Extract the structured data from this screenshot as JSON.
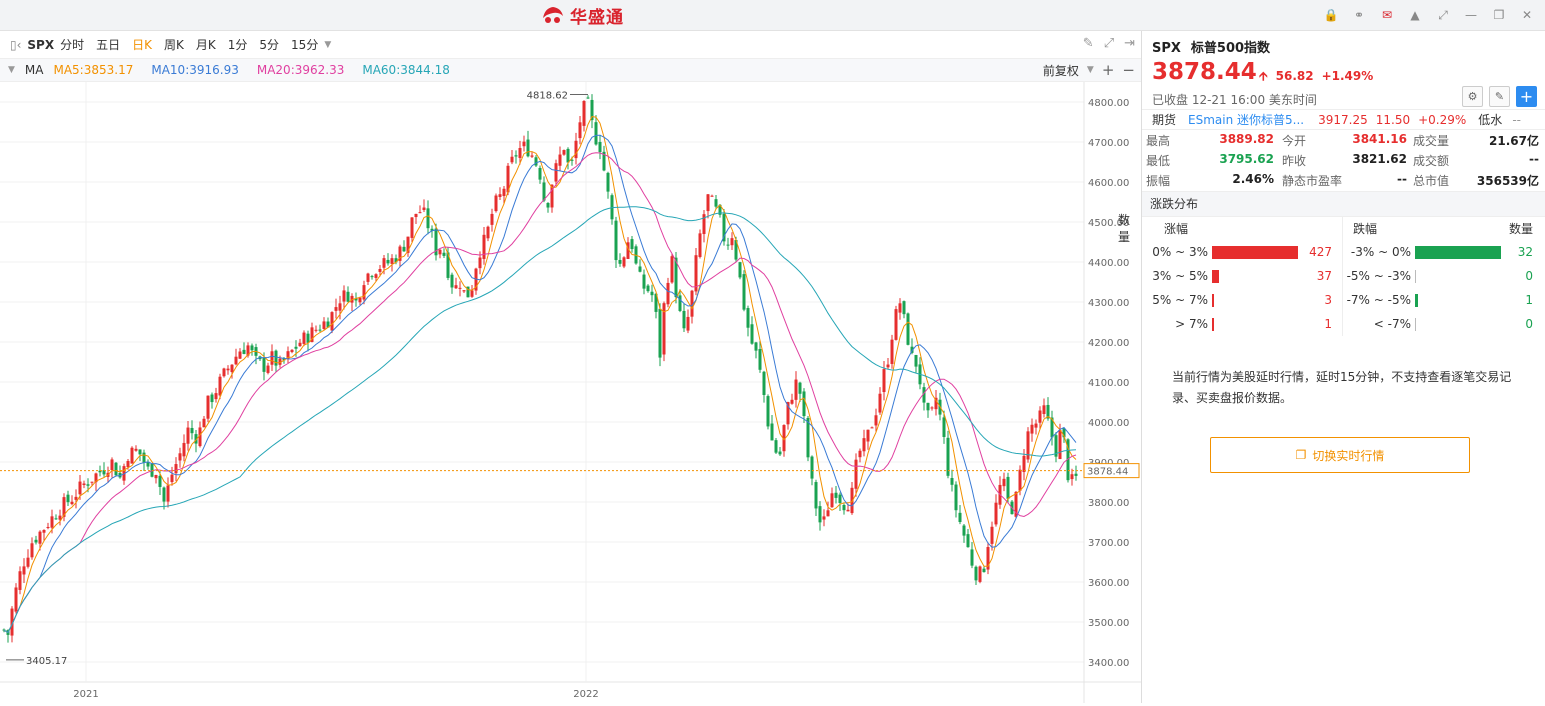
{
  "app": {
    "logo_text": "华盛通"
  },
  "toolbar": {
    "symbol": "SPX",
    "periods": [
      "分时",
      "五日",
      "日K",
      "周K",
      "月K",
      "1分",
      "5分",
      "15分"
    ],
    "active": "日K"
  },
  "ma_bar": {
    "label": "MA",
    "items": [
      {
        "text": "MA5:3853.17",
        "color": "#f29100"
      },
      {
        "text": "MA10:3916.93",
        "color": "#3a7bd5"
      },
      {
        "text": "MA20:3962.33",
        "color": "#e040a0"
      },
      {
        "text": "MA60:3844.18",
        "color": "#26a6b6"
      }
    ],
    "adjust_label": "前复权"
  },
  "chart_data": {
    "type": "line",
    "series_colors": {
      "up": "#e62e2e",
      "down": "#1aa251",
      "ma5": "#f29100",
      "ma10": "#3a7bd5",
      "ma20": "#e040a0",
      "ma60": "#26a6b6"
    },
    "y_ticks": [
      "4800.00",
      "4700.00",
      "4600.00",
      "4500.00",
      "4400.00",
      "4300.00",
      "4200.00",
      "4100.00",
      "4000.00",
      "3900.00",
      "3800.00",
      "3700.00",
      "3600.00",
      "3500.00",
      "3400.00"
    ],
    "ylim": [
      3350,
      4850
    ],
    "x_labels": [
      "2021",
      "2022"
    ],
    "max_label": "4818.62",
    "min_label": "3405.17",
    "last_price_label": "3878.44",
    "last_price": 3878.44,
    "path": [
      [
        0,
        3560
      ],
      [
        6,
        3440
      ],
      [
        14,
        3560
      ],
      [
        22,
        3640
      ],
      [
        32,
        3700
      ],
      [
        42,
        3730
      ],
      [
        52,
        3760
      ],
      [
        62,
        3790
      ],
      [
        72,
        3810
      ],
      [
        82,
        3840
      ],
      [
        92,
        3860
      ],
      [
        102,
        3880
      ],
      [
        112,
        3900
      ],
      [
        120,
        3860
      ],
      [
        128,
        3920
      ],
      [
        138,
        3930
      ],
      [
        148,
        3880
      ],
      [
        156,
        3880
      ],
      [
        164,
        3800
      ],
      [
        172,
        3870
      ],
      [
        180,
        3920
      ],
      [
        188,
        3980
      ],
      [
        198,
        3960
      ],
      [
        206,
        4040
      ],
      [
        214,
        4070
      ],
      [
        222,
        4110
      ],
      [
        232,
        4150
      ],
      [
        240,
        4180
      ],
      [
        248,
        4190
      ],
      [
        256,
        4150
      ],
      [
        264,
        4140
      ],
      [
        272,
        4160
      ],
      [
        280,
        4140
      ],
      [
        290,
        4170
      ],
      [
        300,
        4200
      ],
      [
        310,
        4220
      ],
      [
        320,
        4240
      ],
      [
        330,
        4260
      ],
      [
        340,
        4310
      ],
      [
        348,
        4320
      ],
      [
        356,
        4300
      ],
      [
        364,
        4360
      ],
      [
        372,
        4380
      ],
      [
        380,
        4390
      ],
      [
        390,
        4400
      ],
      [
        398,
        4420
      ],
      [
        406,
        4450
      ],
      [
        414,
        4520
      ],
      [
        422,
        4530
      ],
      [
        430,
        4480
      ],
      [
        436,
        4430
      ],
      [
        442,
        4440
      ],
      [
        448,
        4380
      ],
      [
        454,
        4330
      ],
      [
        460,
        4350
      ],
      [
        466,
        4310
      ],
      [
        472,
        4340
      ],
      [
        478,
        4420
      ],
      [
        486,
        4460
      ],
      [
        494,
        4540
      ],
      [
        502,
        4570
      ],
      [
        510,
        4640
      ],
      [
        518,
        4680
      ],
      [
        526,
        4690
      ],
      [
        534,
        4660
      ],
      [
        540,
        4620
      ],
      [
        546,
        4530
      ],
      [
        552,
        4600
      ],
      [
        558,
        4650
      ],
      [
        564,
        4690
      ],
      [
        570,
        4620
      ],
      [
        576,
        4700
      ],
      [
        582,
        4780
      ],
      [
        588,
        4790
      ],
      [
        594,
        4720
      ],
      [
        600,
        4690
      ],
      [
        606,
        4600
      ],
      [
        612,
        4500
      ],
      [
        618,
        4380
      ],
      [
        624,
        4420
      ],
      [
        630,
        4470
      ],
      [
        636,
        4390
      ],
      [
        642,
        4340
      ],
      [
        648,
        4330
      ],
      [
        654,
        4310
      ],
      [
        660,
        4170
      ],
      [
        666,
        4350
      ],
      [
        672,
        4400
      ],
      [
        678,
        4290
      ],
      [
        684,
        4220
      ],
      [
        690,
        4280
      ],
      [
        696,
        4400
      ],
      [
        702,
        4500
      ],
      [
        708,
        4560
      ],
      [
        714,
        4540
      ],
      [
        720,
        4500
      ],
      [
        726,
        4440
      ],
      [
        732,
        4470
      ],
      [
        738,
        4390
      ],
      [
        744,
        4290
      ],
      [
        750,
        4210
      ],
      [
        756,
        4170
      ],
      [
        762,
        4100
      ],
      [
        768,
        4000
      ],
      [
        774,
        3930
      ],
      [
        780,
        3920
      ],
      [
        786,
        4020
      ],
      [
        792,
        4070
      ],
      [
        798,
        4110
      ],
      [
        804,
        4000
      ],
      [
        810,
        3870
      ],
      [
        816,
        3790
      ],
      [
        822,
        3730
      ],
      [
        828,
        3790
      ],
      [
        834,
        3840
      ],
      [
        840,
        3810
      ],
      [
        846,
        3790
      ],
      [
        852,
        3820
      ],
      [
        858,
        3920
      ],
      [
        864,
        3940
      ],
      [
        870,
        3980
      ],
      [
        876,
        4030
      ],
      [
        882,
        4100
      ],
      [
        888,
        4160
      ],
      [
        894,
        4250
      ],
      [
        900,
        4300
      ],
      [
        906,
        4230
      ],
      [
        912,
        4160
      ],
      [
        918,
        4140
      ],
      [
        924,
        4030
      ],
      [
        930,
        4000
      ],
      [
        936,
        4060
      ],
      [
        942,
        3990
      ],
      [
        948,
        3880
      ],
      [
        954,
        3800
      ],
      [
        960,
        3750
      ],
      [
        966,
        3700
      ],
      [
        972,
        3650
      ],
      [
        978,
        3610
      ],
      [
        984,
        3640
      ],
      [
        990,
        3730
      ],
      [
        996,
        3790
      ],
      [
        1002,
        3860
      ],
      [
        1008,
        3800
      ],
      [
        1014,
        3780
      ],
      [
        1020,
        3870
      ],
      [
        1026,
        3960
      ],
      [
        1032,
        3990
      ],
      [
        1038,
        4000
      ],
      [
        1044,
        4030
      ],
      [
        1050,
        3980
      ],
      [
        1056,
        3930
      ],
      [
        1062,
        3990
      ],
      [
        1068,
        3870
      ],
      [
        1074,
        3840
      ],
      [
        1078,
        3878
      ]
    ]
  },
  "quote": {
    "symbol": "SPX",
    "name": "标普500指数",
    "price": "3878.44",
    "change": "56.82",
    "change_pct": "+1.49%",
    "status": "已收盘 12-21 16:00 美东时间",
    "futures": {
      "label": "期货",
      "code": "ESmain",
      "name": "迷你标普5...",
      "price": "3917.25",
      "change": "11.50",
      "change_pct": "+0.29%",
      "low_label": "低水",
      "low_value": "--"
    },
    "stats": [
      [
        {
          "k": "最高",
          "v": "3889.82",
          "c": "up"
        },
        {
          "k": "今开",
          "v": "3841.16",
          "c": "up"
        },
        {
          "k": "成交量",
          "v": "21.67亿",
          "c": "bk"
        }
      ],
      [
        {
          "k": "最低",
          "v": "3795.62",
          "c": "dn"
        },
        {
          "k": "昨收",
          "v": "3821.62",
          "c": "bk"
        },
        {
          "k": "成交额",
          "v": "--",
          "c": "bk"
        }
      ],
      [
        {
          "k": "振幅",
          "v": "2.46%",
          "c": "bk"
        },
        {
          "k": "静态市盈率",
          "v": "--",
          "c": "bk"
        },
        {
          "k": "总市值",
          "v": "356539亿",
          "c": "bk"
        }
      ]
    ]
  },
  "distribution": {
    "title": "涨跌分布",
    "up_header": "涨幅",
    "down_header": "跌幅",
    "count_header": "数量",
    "up_rows": [
      {
        "range": "0% ~ 3%",
        "count": "427",
        "value": 427
      },
      {
        "range": "3% ~ 5%",
        "count": "37",
        "value": 37
      },
      {
        "range": "5% ~ 7%",
        "count": "3",
        "value": 3
      },
      {
        "range": "> 7%",
        "count": "1",
        "value": 1
      }
    ],
    "down_rows": [
      {
        "range": "-3% ~ 0%",
        "count": "32",
        "value": 32
      },
      {
        "range": "-5% ~ -3%",
        "count": "0",
        "value": 0
      },
      {
        "range": "-7% ~ -5%",
        "count": "1",
        "value": 1
      },
      {
        "range": "< -7%",
        "count": "0",
        "value": 0
      }
    ]
  },
  "notice": "当前行情为美股延时行情，延时15分钟，不支持查看逐笔交易记录、买卖盘报价数据。",
  "switch_button": "切换实时行情"
}
